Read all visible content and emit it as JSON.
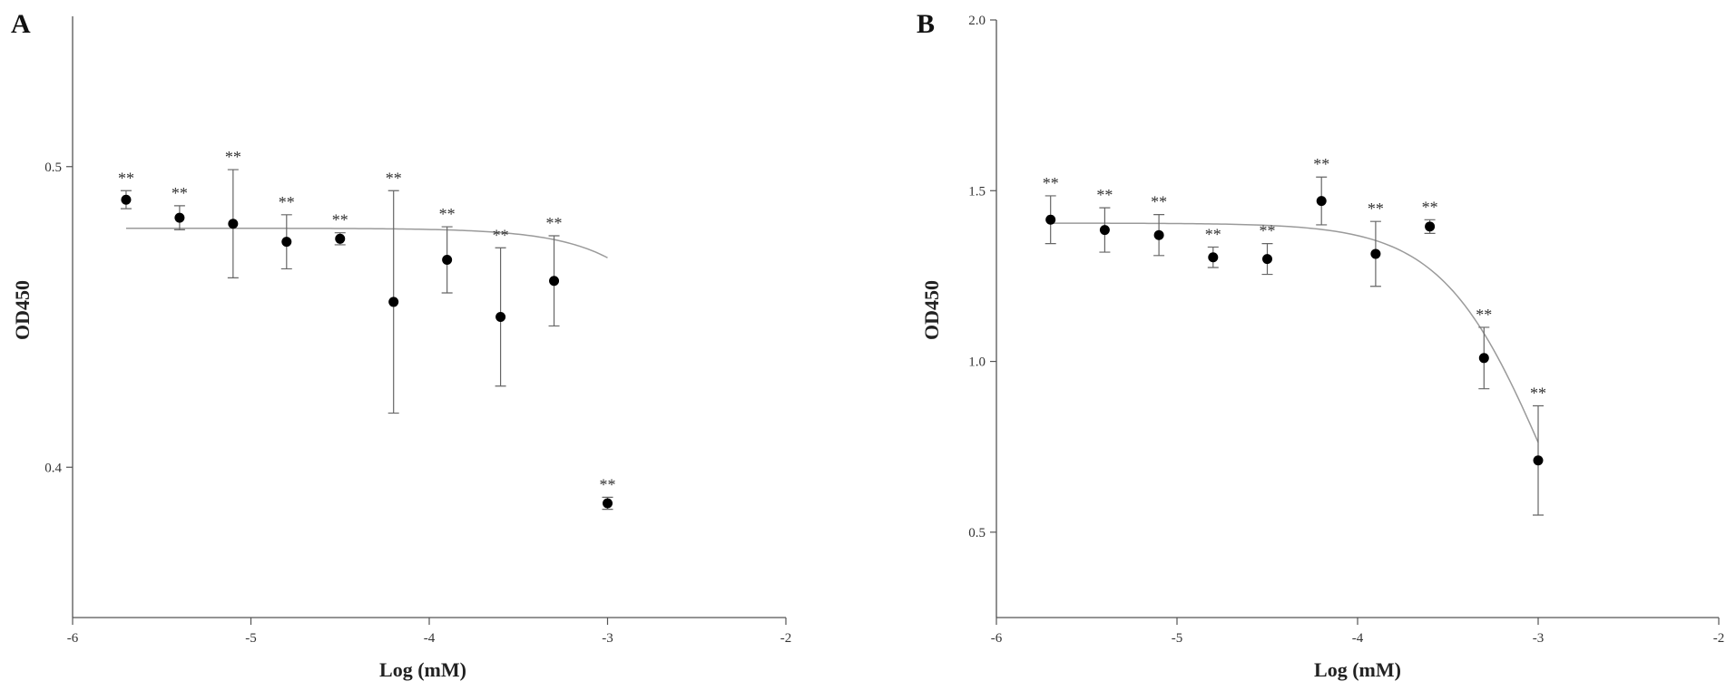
{
  "chart_data": [
    {
      "panel_label": "A",
      "type": "scatter",
      "xlabel": "Log (mM)",
      "ylabel": "OD450",
      "xlim": [
        -6,
        -2
      ],
      "ylim": [
        0.35,
        0.55
      ],
      "xticks": [
        "-6",
        "-5",
        "-4",
        "-3",
        "-2"
      ],
      "yticks": [
        "0.4",
        "0.5"
      ],
      "points": [
        {
          "x": -5.7,
          "y": 0.489,
          "err": 0.003,
          "sig": "**"
        },
        {
          "x": -5.4,
          "y": 0.483,
          "err": 0.004,
          "sig": "**"
        },
        {
          "x": -5.1,
          "y": 0.481,
          "err": 0.018,
          "sig": "**"
        },
        {
          "x": -4.8,
          "y": 0.475,
          "err": 0.009,
          "sig": "**"
        },
        {
          "x": -4.5,
          "y": 0.476,
          "err": 0.002,
          "sig": "**"
        },
        {
          "x": -4.2,
          "y": 0.455,
          "err": 0.037,
          "sig": "**"
        },
        {
          "x": -3.9,
          "y": 0.469,
          "err": 0.011,
          "sig": "**"
        },
        {
          "x": -3.6,
          "y": 0.45,
          "err": 0.023,
          "sig": "**"
        },
        {
          "x": -3.3,
          "y": 0.462,
          "err": 0.015,
          "sig": "**"
        },
        {
          "x": -3.0,
          "y": 0.388,
          "err": 0.002,
          "sig": "**"
        }
      ],
      "fit": {
        "top": 0.4795,
        "bottom": 0.0,
        "log_ic50": -1.8,
        "hill": -1.4,
        "x_range": [
          -5.7,
          -3.0
        ]
      }
    },
    {
      "panel_label": "B",
      "type": "scatter",
      "xlabel": "Log (mM)",
      "ylabel": "OD450",
      "xlim": [
        -6,
        -2
      ],
      "ylim": [
        0.25,
        2.0
      ],
      "xticks": [
        "-6",
        "-5",
        "-4",
        "-3",
        "-2"
      ],
      "yticks": [
        "0.5",
        "1.0",
        "1.5",
        "2.0"
      ],
      "points": [
        {
          "x": -5.7,
          "y": 1.415,
          "err": 0.07,
          "sig": "**"
        },
        {
          "x": -5.4,
          "y": 1.385,
          "err": 0.065,
          "sig": "**"
        },
        {
          "x": -5.1,
          "y": 1.37,
          "err": 0.06,
          "sig": "**"
        },
        {
          "x": -4.8,
          "y": 1.305,
          "err": 0.03,
          "sig": "**"
        },
        {
          "x": -4.5,
          "y": 1.3,
          "err": 0.045,
          "sig": "**"
        },
        {
          "x": -4.2,
          "y": 1.47,
          "err": 0.07,
          "sig": "**"
        },
        {
          "x": -3.9,
          "y": 1.315,
          "err": 0.095,
          "sig": "**"
        },
        {
          "x": -3.6,
          "y": 1.395,
          "err": 0.02,
          "sig": "**"
        },
        {
          "x": -3.3,
          "y": 1.01,
          "err": 0.09,
          "sig": "**"
        },
        {
          "x": -3.0,
          "y": 0.71,
          "err": 0.16,
          "sig": "**"
        }
      ],
      "fit": {
        "top": 1.405,
        "bottom": 0.0,
        "log_ic50": -2.95,
        "hill": -1.5,
        "x_range": [
          -5.7,
          -3.0
        ]
      }
    }
  ]
}
